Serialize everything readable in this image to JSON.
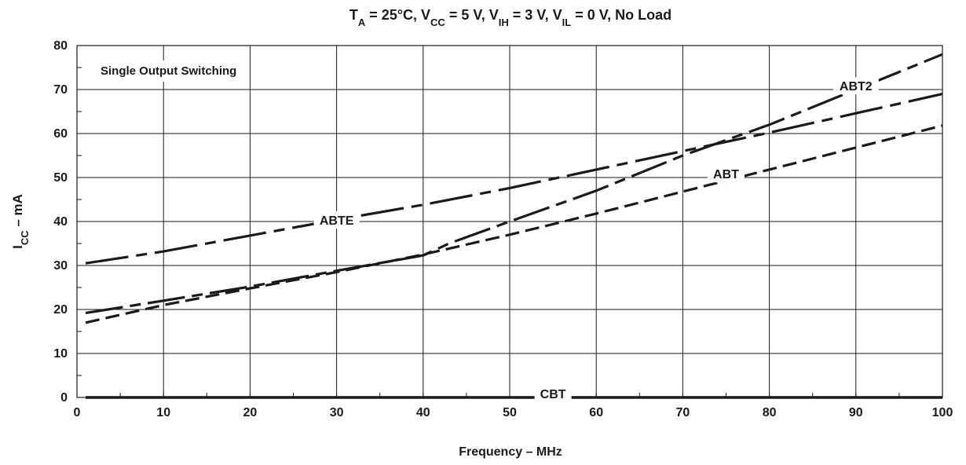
{
  "chart_data": {
    "type": "line",
    "title": {
      "parts": [
        {
          "text": "T",
          "sub": "A"
        },
        {
          "text": " = 25°C, "
        },
        {
          "text": "V",
          "sub": "CC"
        },
        {
          "text": " = 5 V, "
        },
        {
          "text": "V",
          "sub": "IH"
        },
        {
          "text": " = 3 V, "
        },
        {
          "text": "V",
          "sub": "IL"
        },
        {
          "text": " = 0 V, No Load"
        }
      ]
    },
    "xlabel": "Frequency – MHz",
    "ylabel": {
      "main": "I",
      "sub": "CC",
      "rest": " – mA"
    },
    "xlim": [
      0,
      100
    ],
    "ylim": [
      0,
      80
    ],
    "xticks": [
      0,
      10,
      20,
      30,
      40,
      50,
      60,
      70,
      80,
      90,
      100
    ],
    "yticks": [
      0,
      10,
      20,
      30,
      40,
      50,
      60,
      70,
      80
    ],
    "grid": true,
    "annotation": "Single Output Switching",
    "series": [
      {
        "name": "ABTE",
        "label_at": [
          30,
          40
        ],
        "x": [
          1,
          10,
          20,
          30,
          40,
          50,
          60,
          70,
          80,
          90,
          100
        ],
        "y": [
          30.5,
          33.2,
          36.8,
          40.4,
          43.8,
          47.6,
          51.8,
          56.0,
          60.2,
          64.6,
          69.0
        ]
      },
      {
        "name": "ABT2",
        "label_at": [
          90,
          70.5
        ],
        "x": [
          1,
          10,
          20,
          30,
          40,
          43,
          50,
          60,
          70,
          80,
          90,
          100
        ],
        "y": [
          19.2,
          22.0,
          25.2,
          28.8,
          32.3,
          35.0,
          40.0,
          47.0,
          55.0,
          62.0,
          70.0,
          78.0
        ]
      },
      {
        "name": "ABT",
        "label_at": [
          75,
          50.5
        ],
        "x": [
          1,
          10,
          20,
          30,
          40,
          50,
          60,
          70,
          80,
          90,
          100
        ],
        "y": [
          17.0,
          21.0,
          24.8,
          28.5,
          32.5,
          37.0,
          41.8,
          46.8,
          51.8,
          56.8,
          61.8
        ]
      },
      {
        "name": "CBT",
        "label_at": [
          55,
          0.5
        ],
        "x": [
          1,
          100
        ],
        "y": [
          0,
          0
        ]
      }
    ]
  }
}
